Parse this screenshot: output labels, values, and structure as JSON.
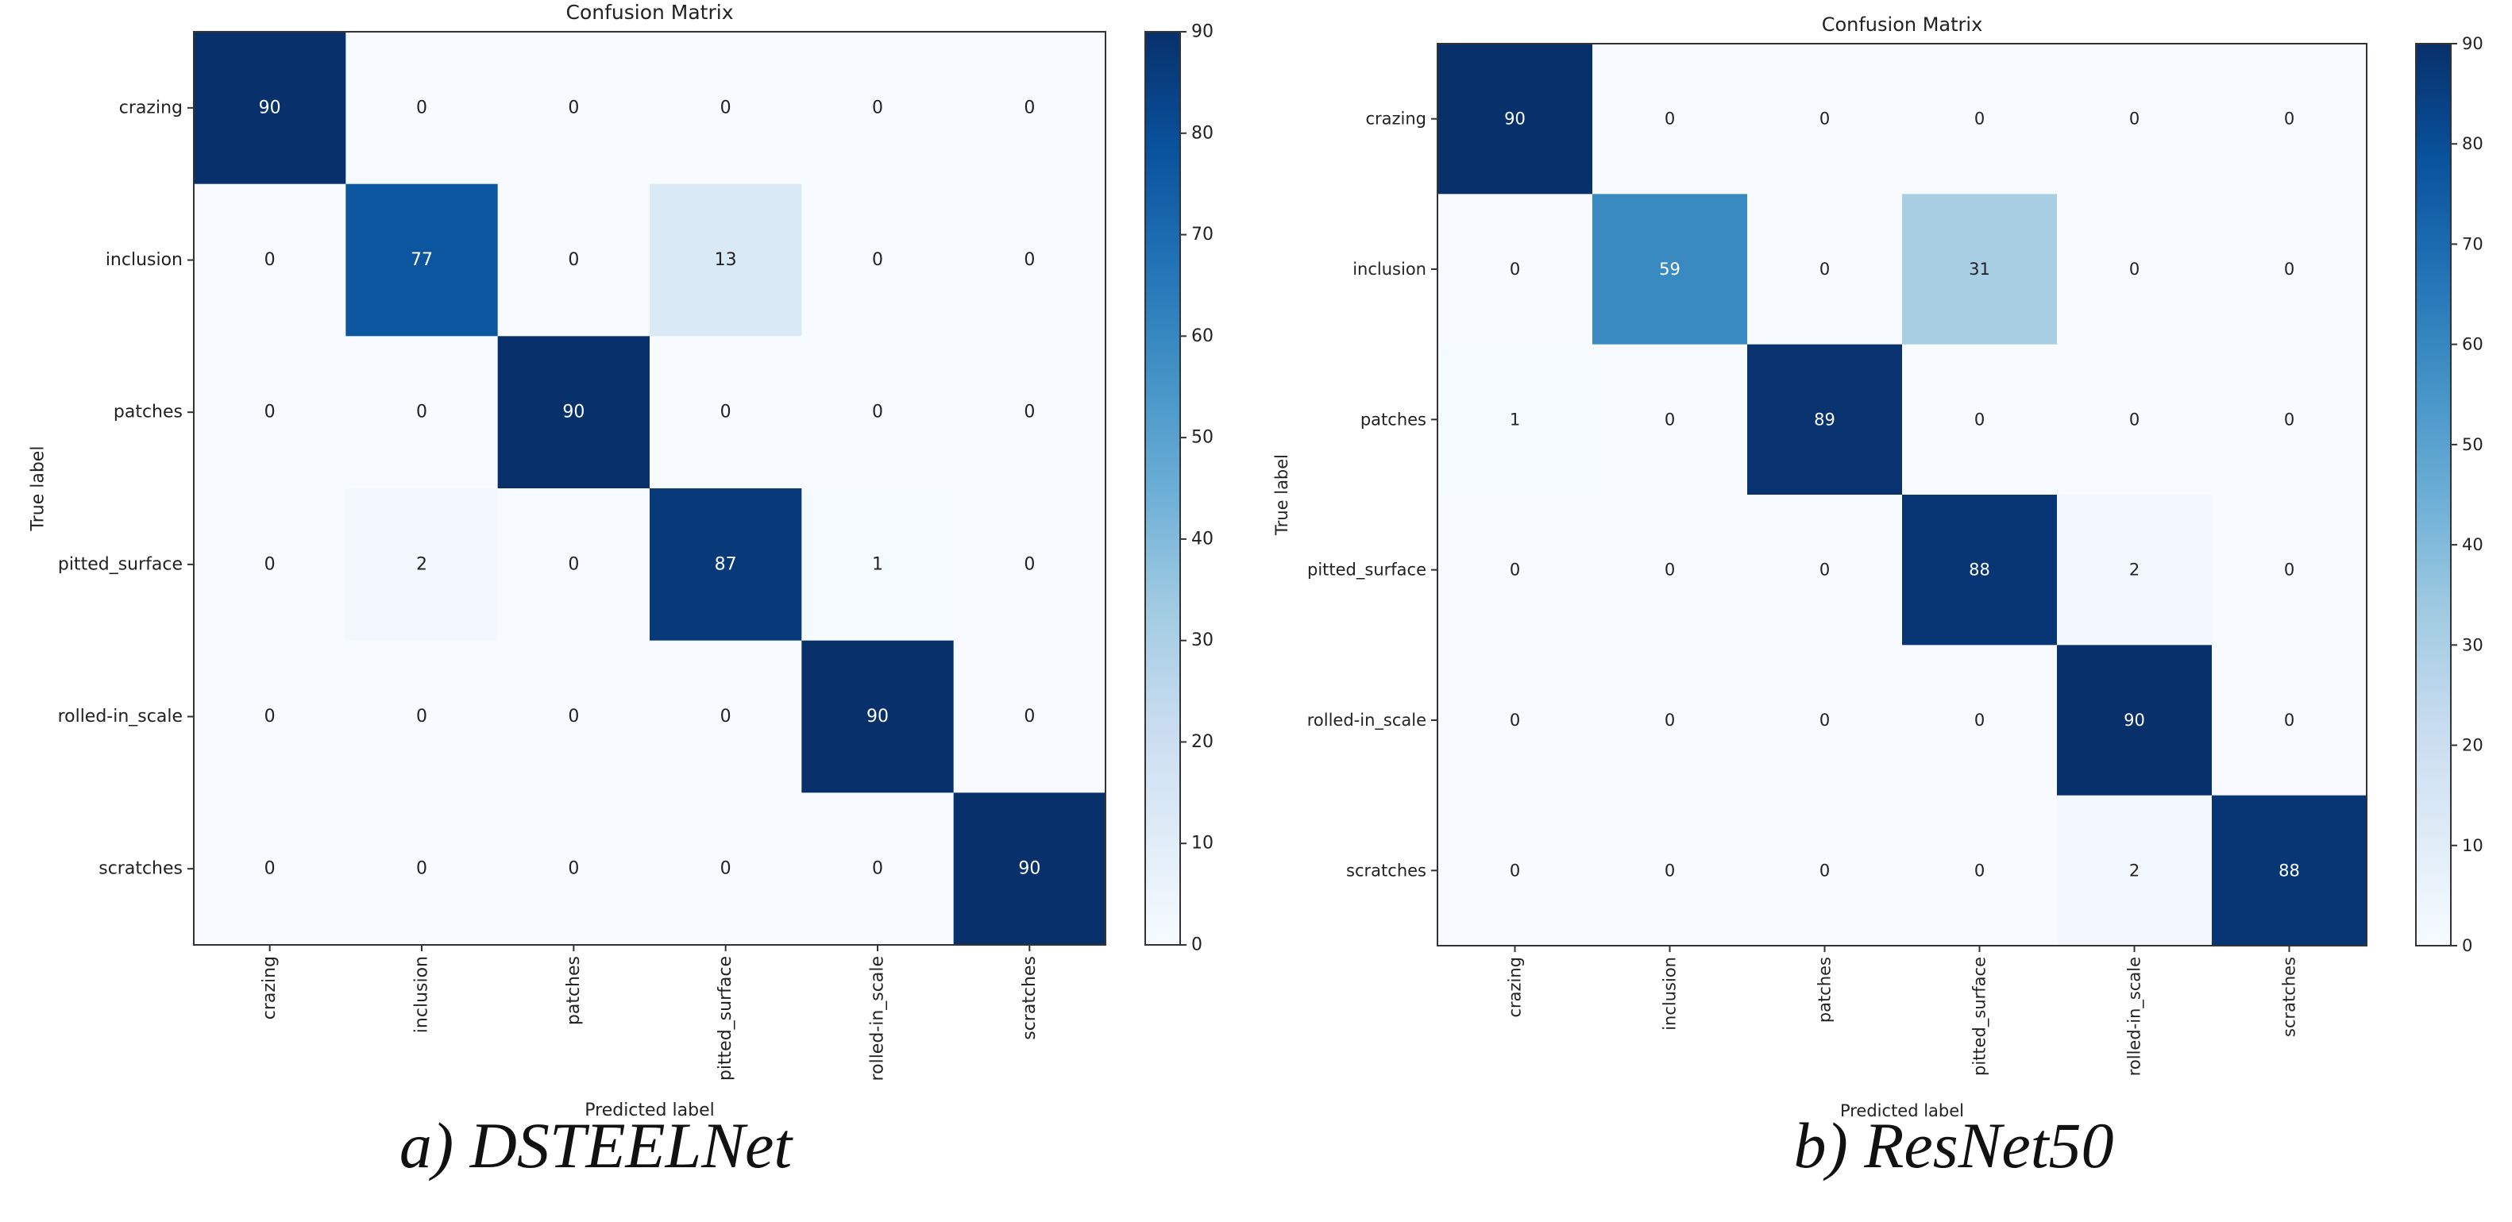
{
  "chart_data": [
    {
      "type": "heatmap",
      "title": "Confusion Matrix",
      "xlabel": "Predicted label",
      "ylabel": "True label",
      "categories": [
        "crazing",
        "inclusion",
        "patches",
        "pitted_surface",
        "rolled-in_scale",
        "scratches"
      ],
      "matrix": [
        [
          90,
          0,
          0,
          0,
          0,
          0
        ],
        [
          0,
          77,
          0,
          13,
          0,
          0
        ],
        [
          0,
          0,
          90,
          0,
          0,
          0
        ],
        [
          0,
          2,
          0,
          87,
          1,
          0
        ],
        [
          0,
          0,
          0,
          0,
          90,
          0
        ],
        [
          0,
          0,
          0,
          0,
          0,
          90
        ]
      ],
      "colorbar": {
        "min": 0,
        "max": 90,
        "ticks": [
          0,
          10,
          20,
          30,
          40,
          50,
          60,
          70,
          80,
          90
        ]
      },
      "colormap": "Blues",
      "caption": "a) DSTEELNet"
    },
    {
      "type": "heatmap",
      "title": "Confusion Matrix",
      "xlabel": "Predicted label",
      "ylabel": "True label",
      "categories": [
        "crazing",
        "inclusion",
        "patches",
        "pitted_surface",
        "rolled-in_scale",
        "scratches"
      ],
      "matrix": [
        [
          90,
          0,
          0,
          0,
          0,
          0
        ],
        [
          0,
          59,
          0,
          31,
          0,
          0
        ],
        [
          1,
          0,
          89,
          0,
          0,
          0
        ],
        [
          0,
          0,
          0,
          88,
          2,
          0
        ],
        [
          0,
          0,
          0,
          0,
          90,
          0
        ],
        [
          0,
          0,
          0,
          0,
          2,
          88
        ]
      ],
      "colorbar": {
        "min": 0,
        "max": 90,
        "ticks": [
          0,
          10,
          20,
          30,
          40,
          50,
          60,
          70,
          80,
          90
        ]
      },
      "colormap": "Blues",
      "caption": "b) ResNet50"
    }
  ]
}
